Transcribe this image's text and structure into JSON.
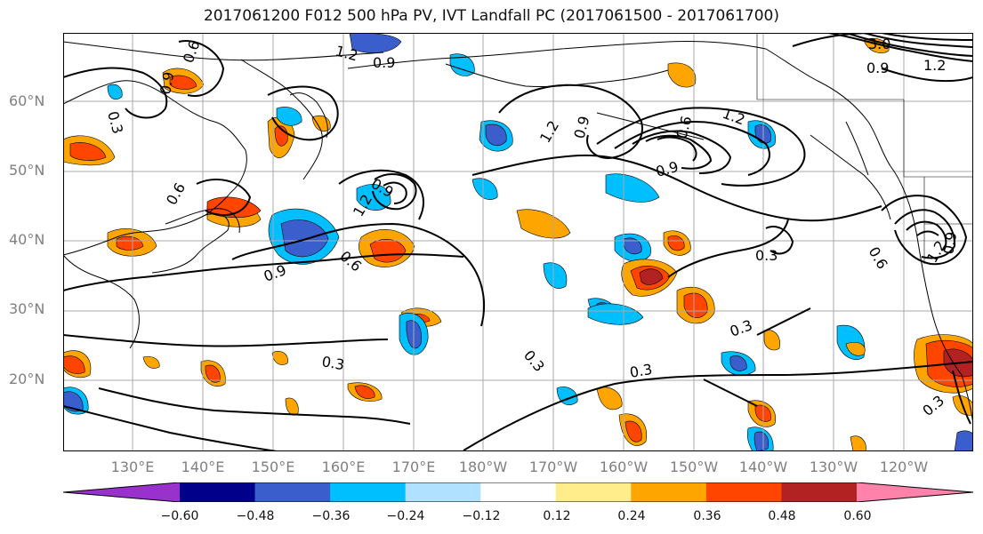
{
  "title": "2017061200 F012 500 hPa PV, IVT Landfall PC (2017061500 - 2017061700)",
  "map": {
    "lat_labels": [
      "60°N",
      "50°N",
      "40°N",
      "30°N",
      "20°N"
    ],
    "lon_labels": [
      "130°E",
      "140°E",
      "150°E",
      "160°E",
      "170°E",
      "180°W",
      "170°W",
      "160°W",
      "150°W",
      "140°W",
      "130°W",
      "120°W"
    ],
    "contour_labels": [
      "0.9",
      "0.6",
      "1.2",
      "0.3",
      "0.6",
      "0.9",
      "1.2",
      "0.9",
      "1.2",
      "0.9",
      "0.6",
      "0.9",
      "1.2",
      "0.6",
      "0.9",
      "1.2",
      "0.9",
      "0.3",
      "0.3",
      "0.3",
      "0.3",
      "0.6",
      "0.3",
      "0.3",
      "3.0",
      "0.9",
      "1.2"
    ],
    "land_color": "#000000",
    "gridline_color": "#a9a9a9"
  },
  "colorbar": {
    "ticks": [
      "−0.60",
      "−0.48",
      "−0.36",
      "−0.24",
      "−0.12",
      "0.12",
      "0.24",
      "0.36",
      "0.48",
      "0.60"
    ],
    "colors": [
      "#9932cc",
      "#00008b",
      "#3a5fcd",
      "#00bfff",
      "#b0e2ff",
      "#ffffff",
      "#ffec8b",
      "#ffa500",
      "#ff4500",
      "#b22222",
      "#ff82ab"
    ]
  }
}
